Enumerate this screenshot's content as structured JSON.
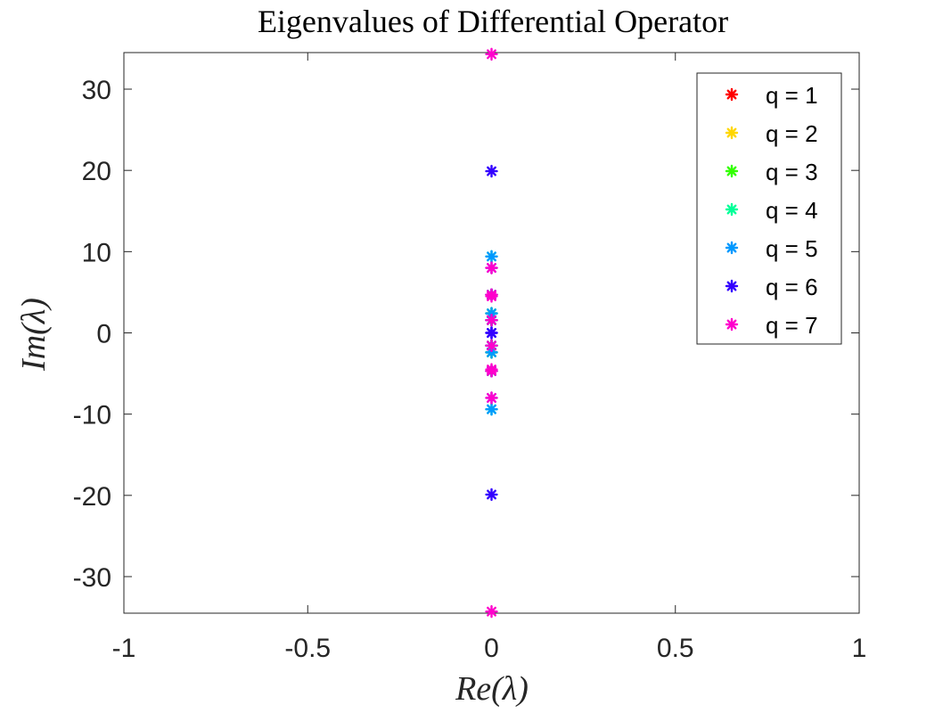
{
  "chart_data": {
    "type": "scatter",
    "title": "Eigenvalues of Differential Operator",
    "xlabel": "Re(λ)",
    "ylabel": "Im(λ)",
    "xlim": [
      -1,
      1
    ],
    "ylim": [
      -34.5,
      34.5
    ],
    "xticks": [
      -1,
      -0.5,
      0,
      0.5,
      1
    ],
    "xtick_labels": [
      "-1",
      "-0.5",
      "0",
      "0.5",
      "1"
    ],
    "yticks": [
      -30,
      -20,
      -10,
      0,
      10,
      20,
      30
    ],
    "ytick_labels": [
      "-30",
      "-20",
      "-10",
      "0",
      "10",
      "20",
      "30"
    ],
    "grid": false,
    "legend_position": "top-right",
    "marker": "asterisk",
    "series": [
      {
        "name": "q = 1",
        "color": "#ff0000",
        "x": [
          0,
          0
        ],
        "y": [
          1.57,
          -1.57
        ]
      },
      {
        "name": "q = 2",
        "color": "#ffd700",
        "x": [
          0,
          0,
          0,
          0
        ],
        "y": [
          2.4,
          1.57,
          -1.57,
          -2.4
        ]
      },
      {
        "name": "q = 3",
        "color": "#33ff00",
        "x": [
          0,
          0,
          0,
          0,
          0,
          0
        ],
        "y": [
          4.7,
          2.4,
          1.57,
          -1.57,
          -2.4,
          -4.7
        ]
      },
      {
        "name": "q = 4",
        "color": "#00ff99",
        "x": [
          0,
          0,
          0,
          0,
          0,
          0,
          0,
          0
        ],
        "y": [
          9.4,
          4.7,
          2.4,
          1.57,
          -1.57,
          -2.4,
          -4.7,
          -9.4
        ]
      },
      {
        "name": "q = 5",
        "color": "#0099ff",
        "x": [
          0,
          0,
          0,
          0,
          0,
          0,
          0,
          0
        ],
        "y": [
          9.4,
          4.7,
          2.4,
          1.57,
          -1.57,
          -2.4,
          -4.7,
          -9.4
        ]
      },
      {
        "name": "q = 6",
        "color": "#3300ff",
        "x": [
          0,
          0,
          0,
          0,
          0,
          0,
          0,
          0,
          0,
          0,
          0
        ],
        "y": [
          19.9,
          8.0,
          4.7,
          1.57,
          0,
          -1.57,
          -4.7,
          -8.0,
          -19.9,
          0.0,
          0.0
        ]
      },
      {
        "name": "q = 7",
        "color": "#ff00cc",
        "x": [
          0,
          0,
          0,
          0,
          0,
          0,
          0,
          0,
          0,
          0
        ],
        "y": [
          34.3,
          8.0,
          4.7,
          1.57,
          -1.57,
          -4.7,
          -8.0,
          -34.3,
          4.5,
          -4.5
        ]
      }
    ]
  }
}
